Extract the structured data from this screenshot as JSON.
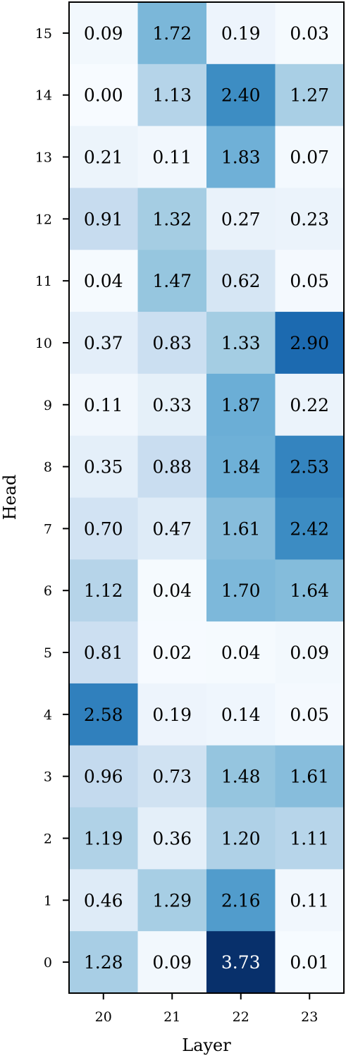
{
  "chart_data": {
    "type": "heatmap",
    "title": "",
    "xlabel": "Layer",
    "ylabel": "Head",
    "x_categories": [
      "20",
      "21",
      "22",
      "23"
    ],
    "y_categories": [
      "15",
      "14",
      "13",
      "12",
      "11",
      "10",
      "9",
      "8",
      "7",
      "6",
      "5",
      "4",
      "3",
      "2",
      "1",
      "0"
    ],
    "value_range": [
      0,
      3.73
    ],
    "colormap": "Blues",
    "values": [
      [
        "0.09",
        "1.72",
        "0.19",
        "0.03"
      ],
      [
        "0.00",
        "1.13",
        "2.40",
        "1.27"
      ],
      [
        "0.21",
        "0.11",
        "1.83",
        "0.07"
      ],
      [
        "0.91",
        "1.32",
        "0.27",
        "0.23"
      ],
      [
        "0.04",
        "1.47",
        "0.62",
        "0.05"
      ],
      [
        "0.37",
        "0.83",
        "1.33",
        "2.90"
      ],
      [
        "0.11",
        "0.33",
        "1.87",
        "0.22"
      ],
      [
        "0.35",
        "0.88",
        "1.84",
        "2.53"
      ],
      [
        "0.70",
        "0.47",
        "1.61",
        "2.42"
      ],
      [
        "1.12",
        "0.04",
        "1.70",
        "1.64"
      ],
      [
        "0.81",
        "0.02",
        "0.04",
        "0.09"
      ],
      [
        "2.58",
        "0.19",
        "0.14",
        "0.05"
      ],
      [
        "0.96",
        "0.73",
        "1.48",
        "1.61"
      ],
      [
        "1.19",
        "0.36",
        "1.20",
        "1.11"
      ],
      [
        "0.46",
        "1.29",
        "2.16",
        "0.11"
      ],
      [
        "1.28",
        "0.09",
        "3.73",
        "0.01"
      ]
    ]
  }
}
